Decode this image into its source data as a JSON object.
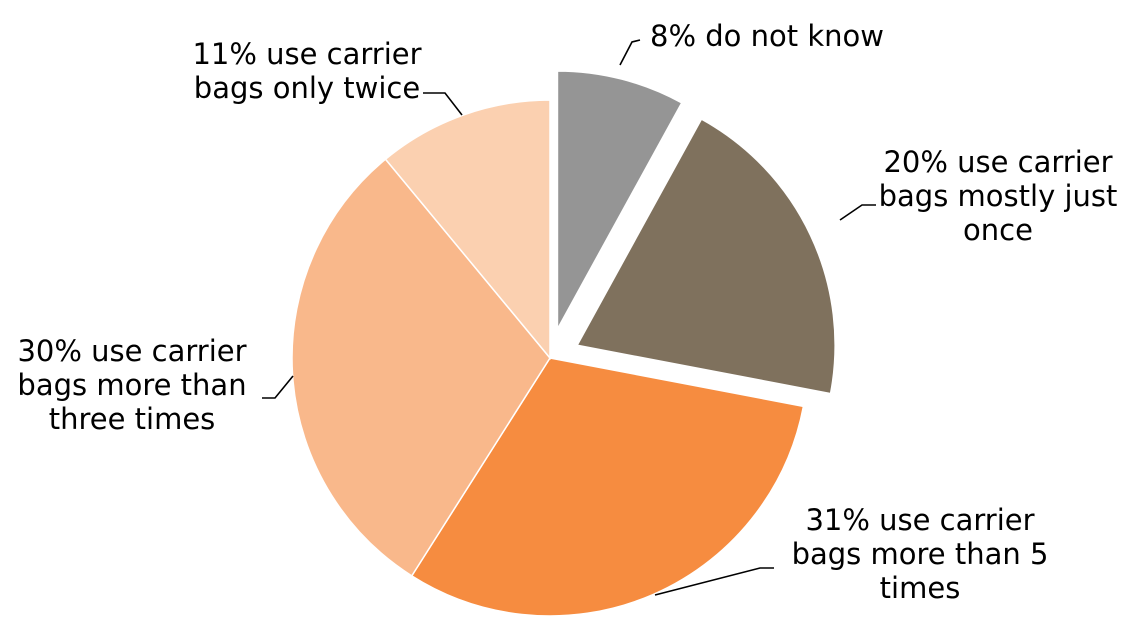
{
  "chart_data": {
    "type": "pie",
    "start_angle_deg": 0,
    "direction": "clockwise",
    "slices": [
      {
        "label_lines": [
          "8% do not know"
        ],
        "value": 8,
        "color": "#959595",
        "exploded": true
      },
      {
        "label_lines": [
          "20% use carrier",
          "bags mostly just",
          "once"
        ],
        "value": 20,
        "color": "#7f715d",
        "exploded": true
      },
      {
        "label_lines": [
          "31% use carrier",
          "bags more than 5",
          "times"
        ],
        "value": 31,
        "color": "#f68c40",
        "exploded": false
      },
      {
        "label_lines": [
          "30% use carrier",
          "bags more than",
          "three times"
        ],
        "value": 30,
        "color": "#f9b88b",
        "exploded": false
      },
      {
        "label_lines": [
          "11% use carrier",
          "bags only twice"
        ],
        "value": 11,
        "color": "#fbd0b0",
        "exploded": false
      }
    ]
  }
}
